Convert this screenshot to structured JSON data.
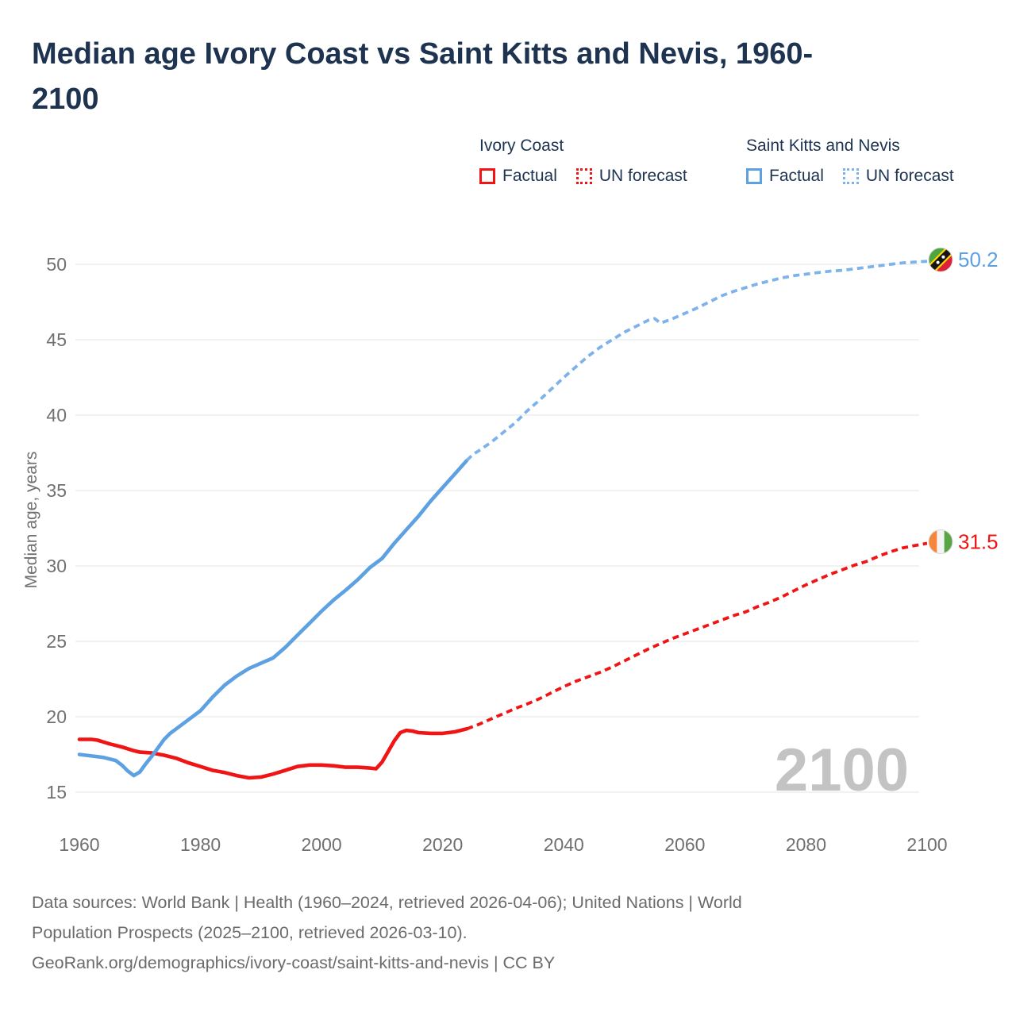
{
  "title": {
    "line1": "Median age Ivory Coast vs Saint Kitts and Nevis, 1960-",
    "line2": "2100"
  },
  "legend": {
    "groups": [
      {
        "name": "Ivory Coast",
        "factual_color": "#f01414",
        "forecast_color": "#f01414",
        "items": [
          {
            "label": "Factual",
            "style": "solid"
          },
          {
            "label": "UN forecast",
            "style": "dotted"
          }
        ]
      },
      {
        "name": "Saint Kitts and Nevis",
        "factual_color": "#5ea1e2",
        "forecast_color": "#7db3ea",
        "items": [
          {
            "label": "Factual",
            "style": "solid"
          },
          {
            "label": "UN forecast",
            "style": "dotted"
          }
        ]
      }
    ]
  },
  "watermark": "2100",
  "footer": {
    "lines": [
      "Data sources: World Bank | Health (1960–2024, retrieved 2026-04-06); United Nations | World",
      "Population Prospects (2025–2100, retrieved 2026-03-10).",
      "GeoRank.org/demographics/ivory-coast/saint-kitts-and-nevis | CC BY"
    ]
  },
  "chart_data": {
    "type": "line",
    "title": "Median age Ivory Coast vs Saint Kitts and Nevis, 1960-2100",
    "xlabel": "",
    "ylabel": "Median age, years",
    "x_ticks": [
      1960,
      1980,
      2000,
      2020,
      2040,
      2060,
      2080,
      2100
    ],
    "y_ticks": [
      15,
      20,
      25,
      30,
      35,
      40,
      45,
      50
    ],
    "ylim": [
      15,
      50
    ],
    "xlim": [
      1960,
      2100
    ],
    "grid": true,
    "legend_position": "top-right",
    "grid_color": "#e9e9e9",
    "axis_text_color": "#707070",
    "watermark_color": "#c3c3c3",
    "series": [
      {
        "name": "Ivory Coast — Factual",
        "key": "ivory-coast-factual",
        "color": "#f01414",
        "dash": false,
        "points": [
          [
            1960,
            18.5
          ],
          [
            1962,
            18.5
          ],
          [
            1963,
            18.45
          ],
          [
            1965,
            18.2
          ],
          [
            1967,
            18.0
          ],
          [
            1969,
            17.75
          ],
          [
            1970,
            17.65
          ],
          [
            1972,
            17.6
          ],
          [
            1974,
            17.45
          ],
          [
            1976,
            17.25
          ],
          [
            1978,
            16.95
          ],
          [
            1980,
            16.7
          ],
          [
            1982,
            16.45
          ],
          [
            1984,
            16.3
          ],
          [
            1986,
            16.1
          ],
          [
            1988,
            15.95
          ],
          [
            1990,
            16.0
          ],
          [
            1992,
            16.2
          ],
          [
            1994,
            16.45
          ],
          [
            1996,
            16.7
          ],
          [
            1998,
            16.8
          ],
          [
            2000,
            16.8
          ],
          [
            2002,
            16.75
          ],
          [
            2004,
            16.65
          ],
          [
            2006,
            16.65
          ],
          [
            2008,
            16.6
          ],
          [
            2009,
            16.55
          ],
          [
            2010,
            17.0
          ],
          [
            2011,
            17.7
          ],
          [
            2012,
            18.4
          ],
          [
            2013,
            18.95
          ],
          [
            2014,
            19.1
          ],
          [
            2015,
            19.05
          ],
          [
            2016,
            18.95
          ],
          [
            2018,
            18.9
          ],
          [
            2020,
            18.9
          ],
          [
            2022,
            19.0
          ],
          [
            2024,
            19.2
          ]
        ]
      },
      {
        "name": "Ivory Coast — UN forecast",
        "key": "ivory-coast-forecast",
        "color": "#f01414",
        "dash": true,
        "points": [
          [
            2024,
            19.2
          ],
          [
            2026,
            19.5
          ],
          [
            2028,
            19.85
          ],
          [
            2030,
            20.2
          ],
          [
            2032,
            20.55
          ],
          [
            2034,
            20.85
          ],
          [
            2036,
            21.2
          ],
          [
            2038,
            21.6
          ],
          [
            2040,
            22.0
          ],
          [
            2042,
            22.35
          ],
          [
            2044,
            22.65
          ],
          [
            2046,
            22.95
          ],
          [
            2048,
            23.3
          ],
          [
            2050,
            23.7
          ],
          [
            2052,
            24.1
          ],
          [
            2054,
            24.5
          ],
          [
            2056,
            24.85
          ],
          [
            2058,
            25.2
          ],
          [
            2060,
            25.5
          ],
          [
            2062,
            25.8
          ],
          [
            2064,
            26.1
          ],
          [
            2066,
            26.4
          ],
          [
            2068,
            26.7
          ],
          [
            2070,
            26.95
          ],
          [
            2072,
            27.3
          ],
          [
            2074,
            27.6
          ],
          [
            2076,
            27.95
          ],
          [
            2078,
            28.35
          ],
          [
            2080,
            28.75
          ],
          [
            2082,
            29.1
          ],
          [
            2084,
            29.45
          ],
          [
            2086,
            29.75
          ],
          [
            2088,
            30.05
          ],
          [
            2090,
            30.3
          ],
          [
            2092,
            30.65
          ],
          [
            2094,
            30.95
          ],
          [
            2096,
            31.2
          ],
          [
            2098,
            31.35
          ],
          [
            2100,
            31.5
          ]
        ]
      },
      {
        "name": "Saint Kitts and Nevis — Factual",
        "key": "saint-kitts-and-nevis-factual",
        "color": "#5ea1e2",
        "dash": false,
        "points": [
          [
            1960,
            17.5
          ],
          [
            1962,
            17.4
          ],
          [
            1964,
            17.3
          ],
          [
            1966,
            17.1
          ],
          [
            1967,
            16.8
          ],
          [
            1968,
            16.4
          ],
          [
            1969,
            16.1
          ],
          [
            1970,
            16.35
          ],
          [
            1971,
            16.9
          ],
          [
            1972,
            17.4
          ],
          [
            1973,
            17.95
          ],
          [
            1974,
            18.5
          ],
          [
            1975,
            18.9
          ],
          [
            1976,
            19.2
          ],
          [
            1978,
            19.8
          ],
          [
            1980,
            20.4
          ],
          [
            1982,
            21.3
          ],
          [
            1984,
            22.1
          ],
          [
            1986,
            22.7
          ],
          [
            1988,
            23.2
          ],
          [
            1990,
            23.55
          ],
          [
            1992,
            23.9
          ],
          [
            1994,
            24.6
          ],
          [
            1996,
            25.4
          ],
          [
            1998,
            26.2
          ],
          [
            2000,
            27.0
          ],
          [
            2002,
            27.75
          ],
          [
            2004,
            28.4
          ],
          [
            2006,
            29.1
          ],
          [
            2008,
            29.9
          ],
          [
            2010,
            30.5
          ],
          [
            2012,
            31.5
          ],
          [
            2014,
            32.4
          ],
          [
            2016,
            33.3
          ],
          [
            2018,
            34.3
          ],
          [
            2020,
            35.2
          ],
          [
            2022,
            36.1
          ],
          [
            2024,
            37.0
          ]
        ]
      },
      {
        "name": "Saint Kitts and Nevis — UN forecast",
        "key": "saint-kitts-and-nevis-forecast",
        "color": "#7db3ea",
        "dash": true,
        "points": [
          [
            2024,
            37.0
          ],
          [
            2025,
            37.4
          ],
          [
            2026,
            37.65
          ],
          [
            2028,
            38.2
          ],
          [
            2030,
            38.85
          ],
          [
            2032,
            39.5
          ],
          [
            2034,
            40.3
          ],
          [
            2036,
            41.0
          ],
          [
            2038,
            41.75
          ],
          [
            2040,
            42.5
          ],
          [
            2042,
            43.2
          ],
          [
            2044,
            43.9
          ],
          [
            2046,
            44.5
          ],
          [
            2048,
            45.0
          ],
          [
            2050,
            45.5
          ],
          [
            2052,
            45.9
          ],
          [
            2054,
            46.3
          ],
          [
            2055,
            46.4
          ],
          [
            2056,
            46.1
          ],
          [
            2058,
            46.4
          ],
          [
            2060,
            46.75
          ],
          [
            2062,
            47.1
          ],
          [
            2064,
            47.5
          ],
          [
            2066,
            47.9
          ],
          [
            2068,
            48.2
          ],
          [
            2070,
            48.45
          ],
          [
            2072,
            48.7
          ],
          [
            2074,
            48.9
          ],
          [
            2076,
            49.1
          ],
          [
            2078,
            49.25
          ],
          [
            2080,
            49.35
          ],
          [
            2082,
            49.45
          ],
          [
            2084,
            49.55
          ],
          [
            2086,
            49.6
          ],
          [
            2088,
            49.7
          ],
          [
            2090,
            49.8
          ],
          [
            2092,
            49.9
          ],
          [
            2094,
            50.0
          ],
          [
            2096,
            50.1
          ],
          [
            2098,
            50.15
          ],
          [
            2100,
            50.2
          ]
        ]
      }
    ],
    "end_labels": [
      {
        "series_key": "saint-kitts-and-nevis-forecast",
        "value": "50.2",
        "color": "#5ea1e2",
        "flag": "saint-kitts-and-nevis"
      },
      {
        "series_key": "ivory-coast-forecast",
        "value": "31.5",
        "color": "#f01414",
        "flag": "ivory-coast"
      }
    ]
  }
}
